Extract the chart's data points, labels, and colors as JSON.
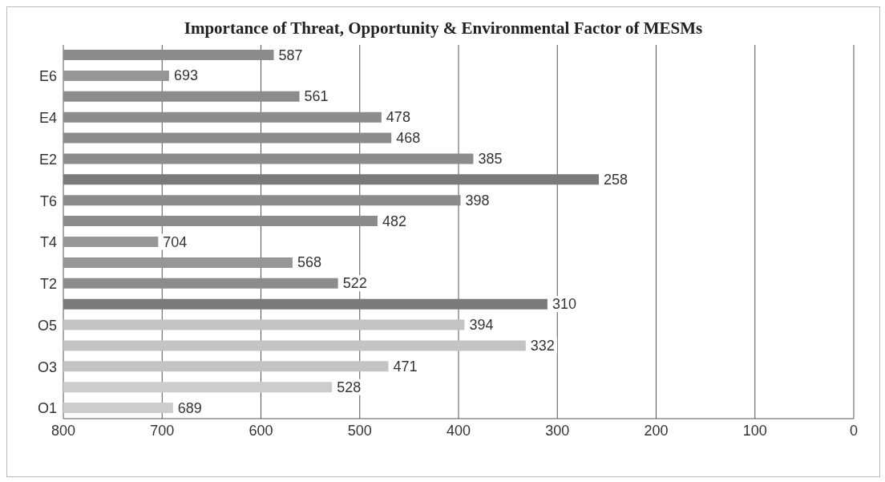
{
  "chart_data": {
    "type": "bar",
    "orientation": "horizontal",
    "title": "Importance of Threat, Opportunity & Environmental Factor of MESMs",
    "categories": [
      null,
      "E6",
      null,
      "E4",
      null,
      "E2",
      null,
      "T6",
      null,
      "T4",
      null,
      "T2",
      null,
      "O5",
      null,
      "O3",
      null,
      "O1"
    ],
    "base": [
      800,
      800,
      800,
      800,
      800,
      800,
      800,
      800,
      800,
      800,
      800,
      800,
      800,
      800,
      800,
      800,
      800,
      800
    ],
    "values": [
      -213,
      -107,
      -239,
      -322,
      -332,
      -415,
      -542,
      -402,
      -318,
      -96,
      -232,
      -278,
      -490,
      -406,
      -468,
      -329,
      -272,
      -111
    ],
    "value_labels": [
      "587",
      "693",
      "561",
      "478",
      "468",
      "385",
      "258",
      "398",
      "482",
      "704",
      "568",
      "522",
      "310",
      "394",
      "332",
      "471",
      "528",
      "689"
    ],
    "colors": [
      "#8c8c8c",
      "#969696",
      "#8c8c8c",
      "#8c8c8c",
      "#8c8c8c",
      "#8c8c8c",
      "#7a7a7a",
      "#8c8c8c",
      "#8c8c8c",
      "#969696",
      "#969696",
      "#8c8c8c",
      "#7a7a7a",
      "#c4c4c4",
      "#c4c4c4",
      "#c4c4c4",
      "#cccccc",
      "#cccccc"
    ],
    "xlim": [
      800,
      0
    ],
    "xticks": [
      800,
      700,
      600,
      500,
      400,
      300,
      200,
      100,
      0
    ],
    "grid": "x"
  }
}
